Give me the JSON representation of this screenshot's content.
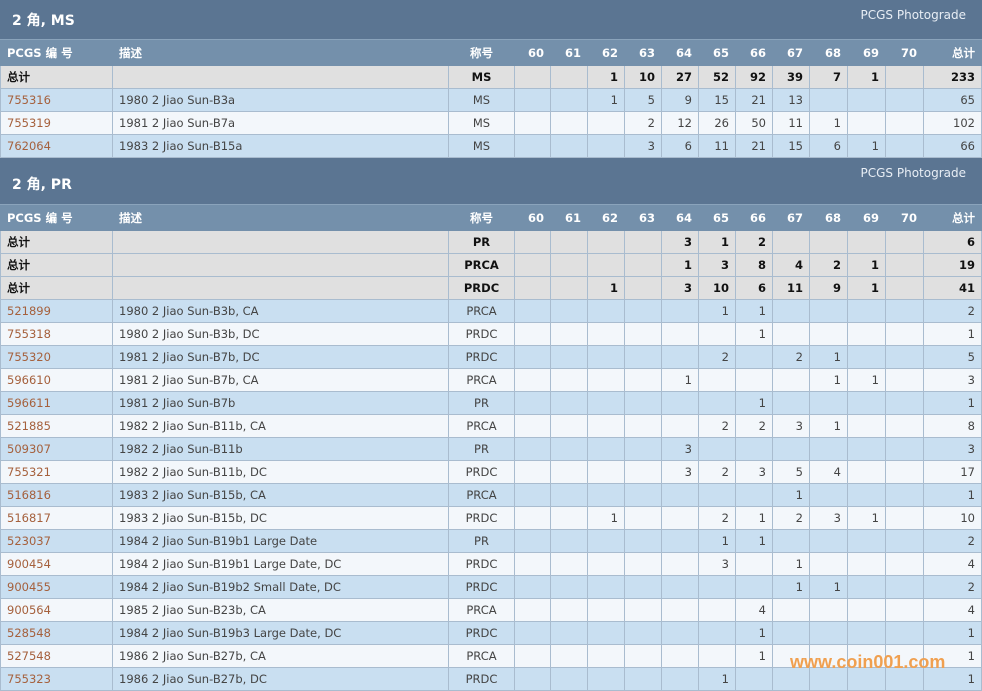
{
  "columns": [
    "PCGS 编 号",
    "描述",
    "称号",
    "60",
    "61",
    "62",
    "63",
    "64",
    "65",
    "66",
    "67",
    "68",
    "69",
    "70",
    "总计"
  ],
  "watermark": "www.coin001.com",
  "colors": {
    "section_header": "#5b7592",
    "column_header": "#7490ab",
    "row_blue": "#c9dff1",
    "row_light": "#f3f7fb",
    "total_row": "#e0e0e0",
    "link": "#a5603c"
  },
  "sections": [
    {
      "title": "2 角, MS",
      "tag": "PCGS Photograde",
      "totals": [
        {
          "label": "总计",
          "designation": "MS",
          "grades": [
            "",
            "",
            "1",
            "10",
            "27",
            "52",
            "92",
            "39",
            "7",
            "1",
            ""
          ],
          "total": "233"
        }
      ],
      "rows": [
        {
          "id": "755316",
          "desc": "1980 2 Jiao Sun-B3a",
          "designation": "MS",
          "grades": [
            "",
            "",
            "1",
            "5",
            "9",
            "15",
            "21",
            "13",
            "",
            "",
            ""
          ],
          "total": "65"
        },
        {
          "id": "755319",
          "desc": "1981 2 Jiao Sun-B7a",
          "designation": "MS",
          "grades": [
            "",
            "",
            "",
            "2",
            "12",
            "26",
            "50",
            "11",
            "1",
            "",
            ""
          ],
          "total": "102"
        },
        {
          "id": "762064",
          "desc": "1983 2 Jiao Sun-B15a",
          "designation": "MS",
          "grades": [
            "",
            "",
            "",
            "3",
            "6",
            "11",
            "21",
            "15",
            "6",
            "1",
            ""
          ],
          "total": "66"
        }
      ]
    },
    {
      "title": "2 角, PR",
      "tag": "PCGS Photograde",
      "totals": [
        {
          "label": "总计",
          "designation": "PR",
          "grades": [
            "",
            "",
            "",
            "",
            "3",
            "1",
            "2",
            "",
            "",
            "",
            ""
          ],
          "total": "6"
        },
        {
          "label": "总计",
          "designation": "PRCA",
          "grades": [
            "",
            "",
            "",
            "",
            "1",
            "3",
            "8",
            "4",
            "2",
            "1",
            ""
          ],
          "total": "19"
        },
        {
          "label": "总计",
          "designation": "PRDC",
          "grades": [
            "",
            "",
            "1",
            "",
            "3",
            "10",
            "6",
            "11",
            "9",
            "1",
            ""
          ],
          "total": "41"
        }
      ],
      "rows": [
        {
          "id": "521899",
          "desc": "1980 2 Jiao Sun-B3b, CA",
          "designation": "PRCA",
          "grades": [
            "",
            "",
            "",
            "",
            "",
            "1",
            "1",
            "",
            "",
            "",
            ""
          ],
          "total": "2"
        },
        {
          "id": "755318",
          "desc": "1980 2 Jiao Sun-B3b, DC",
          "designation": "PRDC",
          "grades": [
            "",
            "",
            "",
            "",
            "",
            "",
            "1",
            "",
            "",
            "",
            ""
          ],
          "total": "1"
        },
        {
          "id": "755320",
          "desc": "1981 2 Jiao Sun-B7b, DC",
          "designation": "PRDC",
          "grades": [
            "",
            "",
            "",
            "",
            "",
            "2",
            "",
            "2",
            "1",
            "",
            ""
          ],
          "total": "5"
        },
        {
          "id": "596610",
          "desc": "1981 2 Jiao Sun-B7b, CA",
          "designation": "PRCA",
          "grades": [
            "",
            "",
            "",
            "",
            "1",
            "",
            "",
            "",
            "1",
            "1",
            ""
          ],
          "total": "3"
        },
        {
          "id": "596611",
          "desc": "1981 2 Jiao Sun-B7b",
          "designation": "PR",
          "grades": [
            "",
            "",
            "",
            "",
            "",
            "",
            "1",
            "",
            "",
            "",
            ""
          ],
          "total": "1"
        },
        {
          "id": "521885",
          "desc": "1982 2 Jiao Sun-B11b, CA",
          "designation": "PRCA",
          "grades": [
            "",
            "",
            "",
            "",
            "",
            "2",
            "2",
            "3",
            "1",
            "",
            ""
          ],
          "total": "8"
        },
        {
          "id": "509307",
          "desc": "1982 2 Jiao Sun-B11b",
          "designation": "PR",
          "grades": [
            "",
            "",
            "",
            "",
            "3",
            "",
            "",
            "",
            "",
            "",
            ""
          ],
          "total": "3"
        },
        {
          "id": "755321",
          "desc": "1982 2 Jiao Sun-B11b, DC",
          "designation": "PRDC",
          "grades": [
            "",
            "",
            "",
            "",
            "3",
            "2",
            "3",
            "5",
            "4",
            "",
            ""
          ],
          "total": "17"
        },
        {
          "id": "516816",
          "desc": "1983 2 Jiao Sun-B15b, CA",
          "designation": "PRCA",
          "grades": [
            "",
            "",
            "",
            "",
            "",
            "",
            "",
            "1",
            "",
            "",
            ""
          ],
          "total": "1"
        },
        {
          "id": "516817",
          "desc": "1983 2 Jiao Sun-B15b, DC",
          "designation": "PRDC",
          "grades": [
            "",
            "",
            "1",
            "",
            "",
            "2",
            "1",
            "2",
            "3",
            "1",
            ""
          ],
          "total": "10"
        },
        {
          "id": "523037",
          "desc": "1984 2 Jiao Sun-B19b1 Large Date",
          "designation": "PR",
          "grades": [
            "",
            "",
            "",
            "",
            "",
            "1",
            "1",
            "",
            "",
            "",
            ""
          ],
          "total": "2"
        },
        {
          "id": "900454",
          "desc": "1984 2 Jiao Sun-B19b1 Large Date, DC",
          "designation": "PRDC",
          "grades": [
            "",
            "",
            "",
            "",
            "",
            "3",
            "",
            "1",
            "",
            "",
            ""
          ],
          "total": "4"
        },
        {
          "id": "900455",
          "desc": "1984 2 Jiao Sun-B19b2 Small Date, DC",
          "designation": "PRDC",
          "grades": [
            "",
            "",
            "",
            "",
            "",
            "",
            "",
            "1",
            "1",
            "",
            ""
          ],
          "total": "2"
        },
        {
          "id": "900564",
          "desc": "1985 2 Jiao Sun-B23b, CA",
          "designation": "PRCA",
          "grades": [
            "",
            "",
            "",
            "",
            "",
            "",
            "4",
            "",
            "",
            "",
            ""
          ],
          "total": "4"
        },
        {
          "id": "528548",
          "desc": "1984 2 Jiao Sun-B19b3 Large Date, DC",
          "designation": "PRDC",
          "grades": [
            "",
            "",
            "",
            "",
            "",
            "",
            "1",
            "",
            "",
            "",
            ""
          ],
          "total": "1"
        },
        {
          "id": "527548",
          "desc": "1986 2 Jiao Sun-B27b, CA",
          "designation": "PRCA",
          "grades": [
            "",
            "",
            "",
            "",
            "",
            "",
            "1",
            "",
            "",
            "",
            ""
          ],
          "total": "1"
        },
        {
          "id": "755323",
          "desc": "1986 2 Jiao Sun-B27b, DC",
          "designation": "PRDC",
          "grades": [
            "",
            "",
            "",
            "",
            "",
            "1",
            "",
            "",
            "",
            "",
            ""
          ],
          "total": "1"
        }
      ]
    }
  ]
}
